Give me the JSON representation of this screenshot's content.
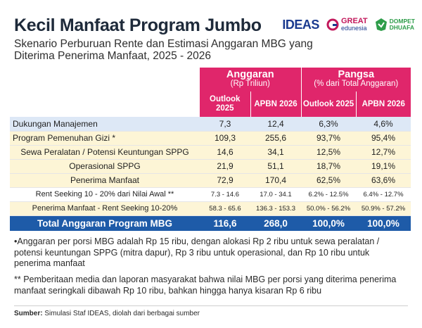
{
  "header": {
    "title": "Kecil Manfaat Program Jumbo",
    "subtitle": "Skenario Perburuan Rente dan Estimasi Anggaran MBG yang Diterima Penerima Manfaat, 2025 - 2026"
  },
  "logos": {
    "ideas": "IDEAS",
    "great_top": "GREAT",
    "great_bottom": "edunesia",
    "dd_top": "DOMPET",
    "dd_bottom": "DHUAFA"
  },
  "colors": {
    "header_pink": "#e0266b",
    "total_blue": "#1e5ba8",
    "row_blue": "#dde8f6",
    "row_yellow": "#fdf5d6"
  },
  "chart_data": {
    "type": "table",
    "column_groups": [
      {
        "title": "Anggaran",
        "subtitle": "(Rp Triliun)"
      },
      {
        "title": "Pangsa",
        "subtitle": "(% dari Total Anggaran)"
      }
    ],
    "columns": [
      "Outlook 2025",
      "APBN 2026",
      "Outlook 2025",
      "APBN 2026"
    ],
    "rows": [
      {
        "label": "Dukungan Manajemen",
        "values": [
          "7,3",
          "12,4",
          "6,3%",
          "4,6%"
        ]
      },
      {
        "label": "Program Pemenuhan Gizi *",
        "values": [
          "109,3",
          "255,6",
          "93,7%",
          "95,4%"
        ]
      },
      {
        "label": "Sewa Peralatan / Potensi Keuntungan SPPG",
        "values": [
          "14,6",
          "34,1",
          "12,5%",
          "12,7%"
        ]
      },
      {
        "label": "Operasional SPPG",
        "values": [
          "21,9",
          "51,1",
          "18,7%",
          "19,1%"
        ]
      },
      {
        "label": "Penerima Manfaat",
        "values": [
          "72,9",
          "170,4",
          "62,5%",
          "63,6%"
        ]
      },
      {
        "label": "Rent Seeking 10 - 20% dari Nilai Awal **",
        "values": [
          "7.3 - 14.6",
          "17.0 - 34.1",
          "6.2% - 12.5%",
          "6.4% - 12.7%"
        ]
      },
      {
        "label": "Penerima Manfaat - Rent Seeking 10-20%",
        "values": [
          "58.3 - 65.6",
          "136.3 - 153.3",
          "50.0% - 56.2%",
          "50.9% - 57.2%"
        ]
      }
    ],
    "total": {
      "label": "Total Anggaran Program MBG",
      "values": [
        "116,6",
        "268,0",
        "100,0%",
        "100,0%"
      ]
    }
  },
  "notes": {
    "note1": "•Anggaran per porsi MBG adalah Rp 15 ribu, dengan alokasi Rp 2 ribu untuk sewa peralatan / potensi keuntungan SPPG (mitra dapur), Rp 3 ribu untuk operasional, dan Rp 10 ribu untuk penerima manfaat",
    "note2": "** Pemberitaan media dan laporan masyarakat bahwa nilai MBG per porsi yang diterima penerima manfaat seringkali dibawah Rp 10 ribu, bahkan hingga hanya kisaran Rp 6 ribu"
  },
  "source": {
    "label": "Sumber:",
    "text": " Simulasi Staf IDEAS, diolah dari berbagai sumber"
  }
}
